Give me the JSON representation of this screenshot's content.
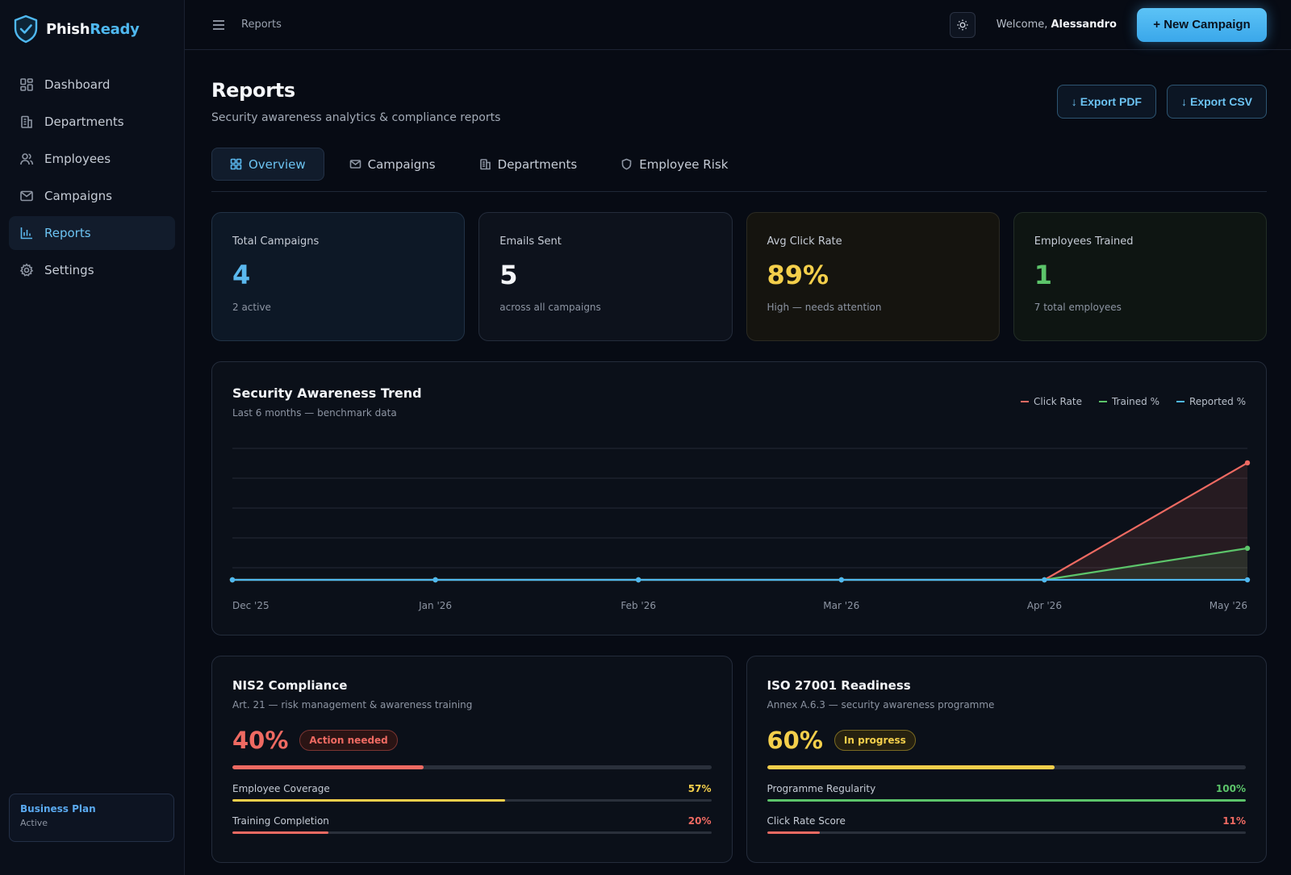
{
  "brand": {
    "name_part1": "Phish",
    "name_part2": "Ready"
  },
  "sidebar": {
    "items": [
      {
        "label": "Dashboard",
        "icon": "dashboard-icon"
      },
      {
        "label": "Departments",
        "icon": "building-icon"
      },
      {
        "label": "Employees",
        "icon": "users-icon"
      },
      {
        "label": "Campaigns",
        "icon": "mail-icon"
      },
      {
        "label": "Reports",
        "icon": "bar-chart-icon",
        "active": true
      },
      {
        "label": "Settings",
        "icon": "gear-icon"
      }
    ],
    "plan": {
      "title": "Business Plan",
      "status": "Active"
    }
  },
  "topbar": {
    "breadcrumb": "Reports",
    "welcome_prefix": "Welcome, ",
    "user_name": "Alessandro",
    "new_campaign_label": "+ New Campaign"
  },
  "page": {
    "title": "Reports",
    "subtitle": "Security awareness analytics & compliance reports",
    "export_pdf": "Export PDF",
    "export_csv": "Export CSV"
  },
  "tabs": [
    {
      "label": "Overview",
      "icon": "grid-icon",
      "active": true
    },
    {
      "label": "Campaigns",
      "icon": "mail-icon"
    },
    {
      "label": "Departments",
      "icon": "building-icon"
    },
    {
      "label": "Employee Risk",
      "icon": "shield-icon"
    }
  ],
  "stats": [
    {
      "label": "Total Campaigns",
      "value": "4",
      "sub": "2 active",
      "color": "#5ab8ee"
    },
    {
      "label": "Emails Sent",
      "value": "5",
      "sub": "across all campaigns",
      "color": "#f3f5f8"
    },
    {
      "label": "Avg Click Rate",
      "value": "89%",
      "sub": "High — needs attention",
      "color": "#f4cf4b"
    },
    {
      "label": "Employees Trained",
      "value": "1",
      "sub": "7 total employees",
      "color": "#5cc46a"
    }
  ],
  "chart": {
    "title": "Security Awareness Trend",
    "subtitle": "Last 6 months — benchmark data",
    "legend": [
      {
        "name": "Click Rate",
        "color": "#ee6a62"
      },
      {
        "name": "Trained %",
        "color": "#5cc46a"
      },
      {
        "name": "Reported %",
        "color": "#4fb8f0"
      }
    ]
  },
  "chart_data": {
    "type": "line",
    "title": "Security Awareness Trend",
    "subtitle": "Last 6 months — benchmark data",
    "categories": [
      "Dec '25",
      "Jan '26",
      "Feb '26",
      "Mar '26",
      "Apr '26",
      "May '26"
    ],
    "ylim": [
      0,
      100
    ],
    "grid": true,
    "legend_position": "top-right",
    "series": [
      {
        "name": "Click Rate",
        "color": "#ee6a62",
        "values": [
          0,
          0,
          0,
          0,
          0,
          89
        ]
      },
      {
        "name": "Trained %",
        "color": "#5cc46a",
        "values": [
          0,
          0,
          0,
          0,
          0,
          24
        ]
      },
      {
        "name": "Reported %",
        "color": "#4fb8f0",
        "values": [
          0,
          0,
          0,
          0,
          0,
          0
        ]
      }
    ]
  },
  "compliance": [
    {
      "title": "NIS2 Compliance",
      "subtitle": "Art. 21 — risk management & awareness training",
      "percent": "40%",
      "progress": 0.4,
      "color": "#ee6a62",
      "badge": "Action needed",
      "badge_color": "#ee6a62",
      "rows": [
        {
          "label": "Employee Coverage",
          "value": "57%",
          "progress": 0.57,
          "color": "#f4cf4b"
        },
        {
          "label": "Training Completion",
          "value": "20%",
          "progress": 0.2,
          "color": "#ee6a62"
        }
      ]
    },
    {
      "title": "ISO 27001 Readiness",
      "subtitle": "Annex A.6.3 — security awareness programme",
      "percent": "60%",
      "progress": 0.6,
      "color": "#f4cf4b",
      "badge": "In progress",
      "badge_color": "#f4cf4b",
      "rows": [
        {
          "label": "Programme Regularity",
          "value": "100%",
          "progress": 1.0,
          "color": "#5cc46a"
        },
        {
          "label": "Click Rate Score",
          "value": "11%",
          "progress": 0.11,
          "color": "#ee6a62"
        }
      ]
    }
  ]
}
